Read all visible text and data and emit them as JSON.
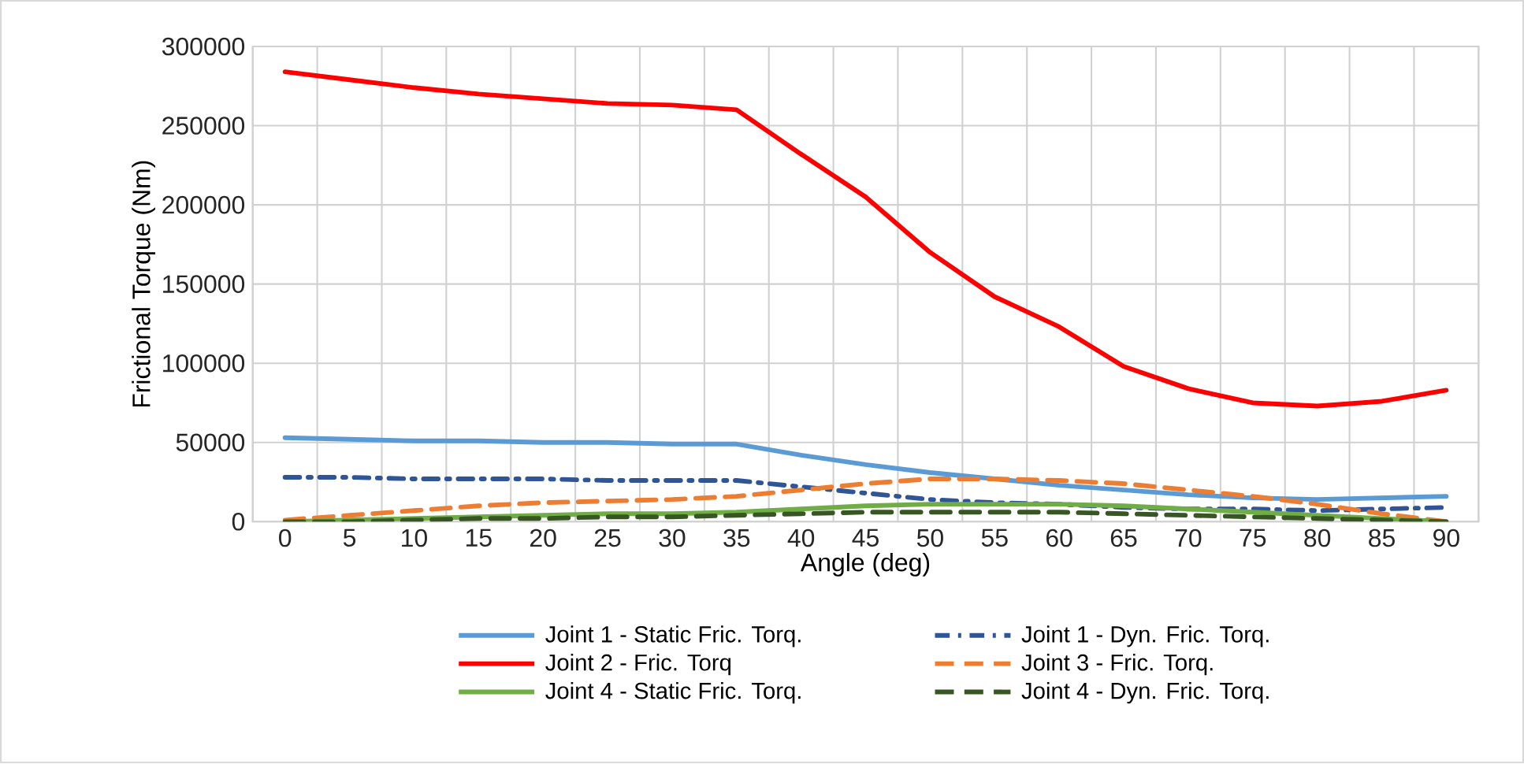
{
  "chart_data": {
    "type": "line",
    "xlabel": "Angle (deg)",
    "ylabel": "Frictional Torque (Nm)",
    "categories": [
      "0",
      "5",
      "10",
      "15",
      "20",
      "25",
      "30",
      "35",
      "40",
      "45",
      "50",
      "55",
      "60",
      "65",
      "70",
      "75",
      "80",
      "85",
      "90"
    ],
    "series": [
      {
        "name": "Joint 1 - Static Fric. Torq.",
        "color": "#5b9bd5",
        "line_style": "solid",
        "values": [
          53000,
          52000,
          51000,
          51000,
          50000,
          50000,
          49000,
          49000,
          42000,
          36000,
          31000,
          27000,
          23000,
          20000,
          17000,
          15000,
          14000,
          15000,
          16000
        ]
      },
      {
        "name": "Joint 1 - Dyn. Fric. Torq.",
        "color": "#2f5597",
        "line_style": "dashdot",
        "values": [
          28000,
          28000,
          27000,
          27000,
          27000,
          26000,
          26000,
          26000,
          22000,
          18000,
          14000,
          12000,
          11000,
          9000,
          8000,
          8000,
          7000,
          8000,
          9000
        ]
      },
      {
        "name": "Joint 2 - Fric. Torq",
        "color": "#ff0000",
        "line_style": "solid",
        "values": [
          284000,
          279000,
          274000,
          270000,
          267000,
          264000,
          263000,
          260000,
          232000,
          205000,
          170000,
          142000,
          123000,
          98000,
          84000,
          75000,
          73000,
          76000,
          83000
        ]
      },
      {
        "name": "Joint 3 - Fric. Torq.",
        "color": "#ed7d31",
        "line_style": "dashed",
        "values": [
          1000,
          4000,
          7000,
          10000,
          12000,
          13000,
          14000,
          16000,
          20000,
          24000,
          27000,
          27000,
          26000,
          24000,
          20000,
          16000,
          11000,
          5000,
          0
        ]
      },
      {
        "name": "Joint 4 - Static Fric. Torq.",
        "color": "#70ad47",
        "line_style": "solid",
        "values": [
          0,
          1000,
          2000,
          3000,
          4000,
          5000,
          5000,
          6000,
          8000,
          10000,
          11000,
          11000,
          11000,
          10000,
          8000,
          6000,
          4000,
          2000,
          0
        ]
      },
      {
        "name": "Joint 4 - Dyn. Fric. Torq.",
        "color": "#375623",
        "line_style": "dashed",
        "values": [
          0,
          0,
          1000,
          2000,
          2000,
          3000,
          3000,
          4000,
          5000,
          6000,
          6000,
          6000,
          6000,
          5000,
          4000,
          3000,
          2000,
          1000,
          0
        ]
      }
    ],
    "ylim": [
      0,
      300000
    ],
    "yticks": [
      0,
      50000,
      100000,
      150000,
      200000,
      250000,
      300000
    ],
    "grid": true,
    "legend": "bottom",
    "marker": "none"
  }
}
